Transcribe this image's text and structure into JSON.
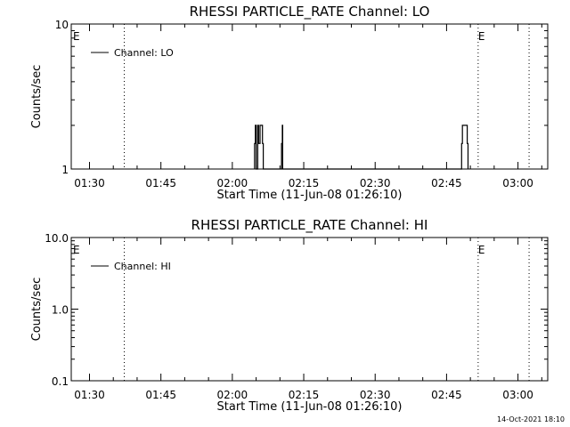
{
  "chart_data": [
    {
      "type": "line",
      "title": "RHESSI PARTICLE_RATE Channel: LO",
      "xlabel": "Start Time (11-Jun-08 01:26:10)",
      "ylabel": "Counts/sec",
      "xlim": [
        "01:26:10",
        "03:06:15"
      ],
      "x_ticks": [
        "01:30",
        "01:45",
        "02:00",
        "02:15",
        "02:30",
        "02:45",
        "03:00"
      ],
      "yscale": "log",
      "ylim": [
        1,
        10
      ],
      "y_tick_labels": [
        "1",
        "10"
      ],
      "y_tick_values": [
        1,
        10
      ],
      "legend": {
        "label": "Channel: LO",
        "placement": "top-left"
      },
      "markers": [
        {
          "label": "E",
          "time": "01:26:10"
        },
        {
          "label": "E",
          "time": "02:51:38"
        }
      ],
      "dotted_lines": [
        "01:37:18",
        "02:51:38",
        "03:02:20"
      ],
      "series": [
        {
          "name": "Channel: LO",
          "points": [
            [
              "02:04:40",
              1
            ],
            [
              "02:04:40",
              1.5
            ],
            [
              "02:04:50",
              1.5
            ],
            [
              "02:04:50",
              2
            ],
            [
              "02:05:00",
              2
            ],
            [
              "02:05:00",
              1
            ],
            [
              "02:05:20",
              1
            ],
            [
              "02:05:20",
              2
            ],
            [
              "02:05:30",
              2
            ],
            [
              "02:05:30",
              1.5
            ],
            [
              "02:05:50",
              1.5
            ],
            [
              "02:05:50",
              2
            ],
            [
              "02:06:20",
              2
            ],
            [
              "02:06:20",
              1.5
            ],
            [
              "02:06:30",
              1.5
            ],
            [
              "02:06:30",
              1
            ],
            [
              "02:10:20",
              1
            ],
            [
              "02:10:20",
              1.5
            ],
            [
              "02:10:30",
              1.5
            ],
            [
              "02:10:30",
              2
            ],
            [
              "02:10:35",
              2
            ],
            [
              "02:10:35",
              1
            ],
            [
              "02:48:10",
              1
            ],
            [
              "02:48:10",
              1.5
            ],
            [
              "02:48:20",
              1.5
            ],
            [
              "02:48:20",
              2
            ],
            [
              "02:49:20",
              2
            ],
            [
              "02:49:20",
              1.5
            ],
            [
              "02:49:30",
              1.5
            ],
            [
              "02:49:30",
              1
            ]
          ]
        }
      ]
    },
    {
      "type": "line",
      "title": "RHESSI PARTICLE_RATE Channel: HI",
      "xlabel": "Start Time (11-Jun-08 01:26:10)",
      "ylabel": "Counts/sec",
      "xlim": [
        "01:26:10",
        "03:06:15"
      ],
      "x_ticks": [
        "01:30",
        "01:45",
        "02:00",
        "02:15",
        "02:30",
        "02:45",
        "03:00"
      ],
      "yscale": "log",
      "ylim": [
        0.1,
        10
      ],
      "y_tick_labels": [
        "0.1",
        "1.0",
        "10.0"
      ],
      "y_tick_values": [
        0.1,
        1,
        10
      ],
      "legend": {
        "label": "Channel: HI",
        "placement": "top-left"
      },
      "markers": [
        {
          "label": "E",
          "time": "01:26:10"
        },
        {
          "label": "E",
          "time": "02:51:38"
        }
      ],
      "dotted_lines": [
        "01:37:18",
        "02:51:38",
        "03:02:20"
      ],
      "series": [
        {
          "name": "Channel: HI",
          "points": []
        }
      ]
    }
  ],
  "footer": {
    "timestamp": "14-Oct-2021 18:10"
  }
}
